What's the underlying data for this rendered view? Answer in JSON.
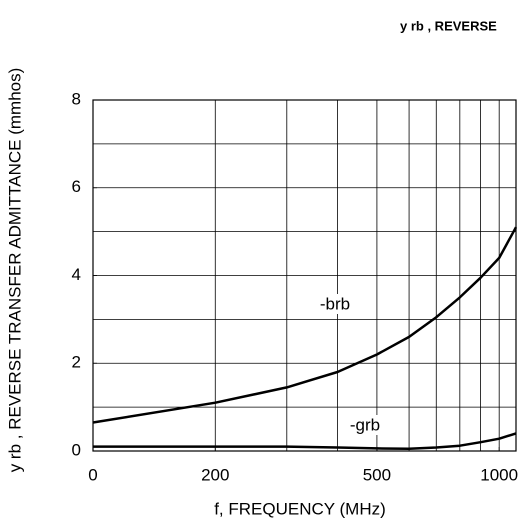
{
  "chart_data": {
    "type": "line",
    "title": "y rb , REVERSE",
    "y_label": "y rb , REVERSE TRANSFER ADMITTANCE (mmhos)",
    "x_label": "f, FREQUENCY (MHz)",
    "log_x": true,
    "x": [
      100,
      200,
      300,
      400,
      500,
      600,
      700,
      800,
      900,
      1000,
      1100
    ],
    "series": [
      {
        "name": "-brb",
        "color": "#000000",
        "values": [
          0.65,
          1.1,
          1.45,
          1.8,
          2.2,
          2.6,
          3.05,
          3.5,
          3.95,
          4.4,
          5.1
        ]
      },
      {
        "name": "-grb",
        "color": "#000000",
        "values": [
          0.1,
          0.1,
          0.1,
          0.08,
          0.06,
          0.05,
          0.08,
          0.12,
          0.2,
          0.28,
          0.4
        ]
      }
    ],
    "xlim": [
      100,
      1100
    ],
    "xticks": [
      {
        "value": 100,
        "label": "0"
      },
      200,
      500,
      1000
    ],
    "xgrid": [
      200,
      300,
      400,
      500,
      600,
      700,
      800,
      900,
      1000
    ],
    "ylim": [
      0,
      8
    ],
    "yticks": [
      0,
      2,
      4,
      6,
      8
    ],
    "ygrid": [
      1,
      2,
      3,
      4,
      5,
      6,
      7
    ],
    "grid": true
  }
}
